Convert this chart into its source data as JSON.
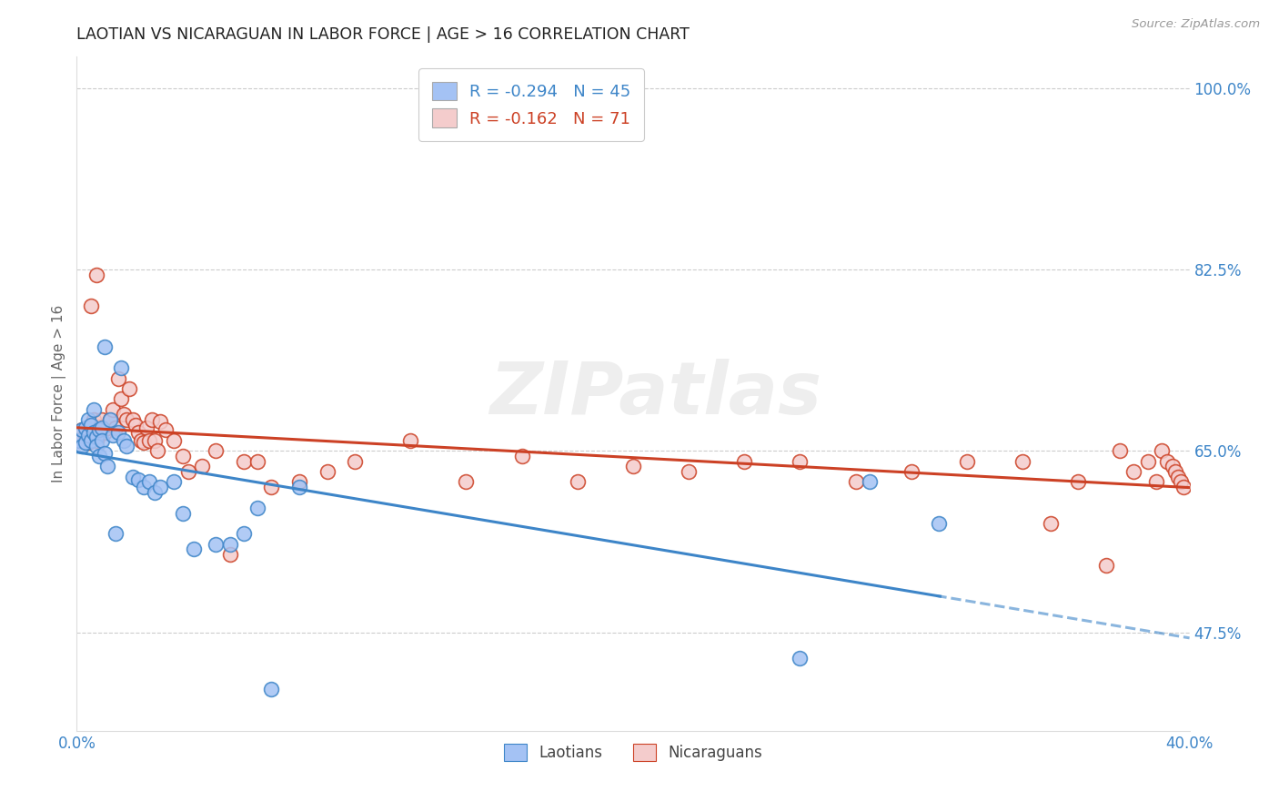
{
  "title": "LAOTIAN VS NICARAGUAN IN LABOR FORCE | AGE > 16 CORRELATION CHART",
  "source": "Source: ZipAtlas.com",
  "ylabel": "In Labor Force | Age > 16",
  "x_min": 0.0,
  "x_max": 0.4,
  "y_min": 0.38,
  "y_max": 1.03,
  "x_ticks": [
    0.0,
    0.4
  ],
  "x_tick_labels": [
    "0.0%",
    "40.0%"
  ],
  "y_ticks": [
    0.475,
    0.65,
    0.825,
    1.0
  ],
  "y_tick_labels": [
    "47.5%",
    "65.0%",
    "82.5%",
    "100.0%"
  ],
  "blue_color": "#a4c2f4",
  "pink_color": "#f4cccc",
  "blue_line_color": "#3d85c8",
  "pink_line_color": "#cc4125",
  "legend_R_blue": "-0.294",
  "legend_N_blue": "45",
  "legend_R_pink": "-0.162",
  "legend_N_pink": "71",
  "legend_label_blue": "Laotians",
  "legend_label_pink": "Nicaraguans",
  "watermark": "ZIPatlas",
  "blue_points_x": [
    0.001,
    0.002,
    0.002,
    0.003,
    0.003,
    0.004,
    0.004,
    0.005,
    0.005,
    0.006,
    0.006,
    0.007,
    0.007,
    0.008,
    0.008,
    0.009,
    0.009,
    0.01,
    0.01,
    0.011,
    0.012,
    0.013,
    0.014,
    0.015,
    0.016,
    0.017,
    0.018,
    0.02,
    0.022,
    0.024,
    0.026,
    0.028,
    0.03,
    0.035,
    0.038,
    0.042,
    0.05,
    0.055,
    0.06,
    0.065,
    0.07,
    0.08,
    0.26,
    0.285,
    0.31
  ],
  "blue_points_y": [
    0.66,
    0.655,
    0.67,
    0.658,
    0.672,
    0.665,
    0.68,
    0.66,
    0.675,
    0.69,
    0.668,
    0.663,
    0.655,
    0.67,
    0.645,
    0.672,
    0.66,
    0.75,
    0.648,
    0.635,
    0.68,
    0.665,
    0.57,
    0.668,
    0.73,
    0.66,
    0.655,
    0.625,
    0.622,
    0.615,
    0.62,
    0.61,
    0.615,
    0.62,
    0.59,
    0.555,
    0.56,
    0.56,
    0.57,
    0.595,
    0.42,
    0.615,
    0.45,
    0.62,
    0.58
  ],
  "pink_points_x": [
    0.001,
    0.002,
    0.003,
    0.004,
    0.005,
    0.005,
    0.006,
    0.007,
    0.007,
    0.008,
    0.009,
    0.01,
    0.011,
    0.012,
    0.013,
    0.014,
    0.015,
    0.016,
    0.017,
    0.018,
    0.019,
    0.02,
    0.021,
    0.022,
    0.023,
    0.024,
    0.025,
    0.026,
    0.027,
    0.028,
    0.029,
    0.03,
    0.032,
    0.035,
    0.038,
    0.04,
    0.045,
    0.05,
    0.055,
    0.06,
    0.065,
    0.07,
    0.08,
    0.09,
    0.1,
    0.12,
    0.14,
    0.16,
    0.18,
    0.2,
    0.22,
    0.24,
    0.26,
    0.28,
    0.3,
    0.32,
    0.34,
    0.35,
    0.36,
    0.37,
    0.375,
    0.38,
    0.385,
    0.388,
    0.39,
    0.392,
    0.394,
    0.395,
    0.396,
    0.397,
    0.398
  ],
  "pink_points_y": [
    0.66,
    0.67,
    0.665,
    0.658,
    0.79,
    0.672,
    0.68,
    0.82,
    0.66,
    0.673,
    0.68,
    0.668,
    0.672,
    0.68,
    0.69,
    0.672,
    0.72,
    0.7,
    0.685,
    0.68,
    0.71,
    0.68,
    0.675,
    0.668,
    0.66,
    0.658,
    0.672,
    0.66,
    0.68,
    0.66,
    0.65,
    0.678,
    0.67,
    0.66,
    0.645,
    0.63,
    0.635,
    0.65,
    0.55,
    0.64,
    0.64,
    0.615,
    0.62,
    0.63,
    0.64,
    0.66,
    0.62,
    0.645,
    0.62,
    0.635,
    0.63,
    0.64,
    0.64,
    0.62,
    0.63,
    0.64,
    0.64,
    0.58,
    0.62,
    0.54,
    0.65,
    0.63,
    0.64,
    0.62,
    0.65,
    0.64,
    0.635,
    0.63,
    0.625,
    0.62,
    0.615
  ]
}
